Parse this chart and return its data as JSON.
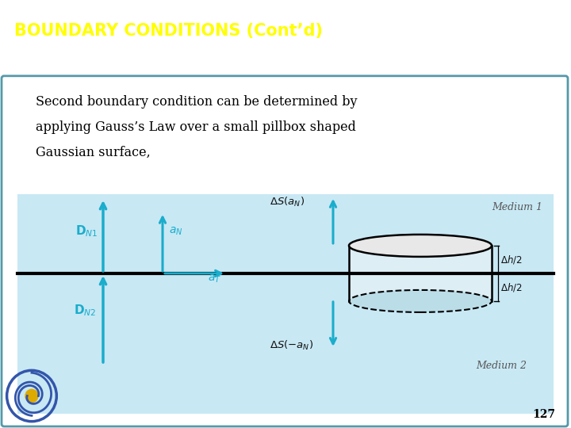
{
  "title": "BOUNDARY CONDITIONS (Cont’d)",
  "title_color": "#FFFF00",
  "header_bg": "#6B6BBB",
  "body_bg": "#FFFFFF",
  "diagram_bg": "#C8E8F4",
  "border_color": "#5599AA",
  "text_color": "#000000",
  "cyan": "#1AADCC",
  "medium1_label": "Medium 1",
  "medium2_label": "Medium 2",
  "body_text_line1": "Second boundary condition can be determined by",
  "body_text_line2": "applying Gauss’s Law over a small pillbox shaped",
  "body_text_line3": "Gaussian surface,",
  "page_number": "127",
  "fig_w": 7.2,
  "fig_h": 5.4,
  "dpi": 100
}
